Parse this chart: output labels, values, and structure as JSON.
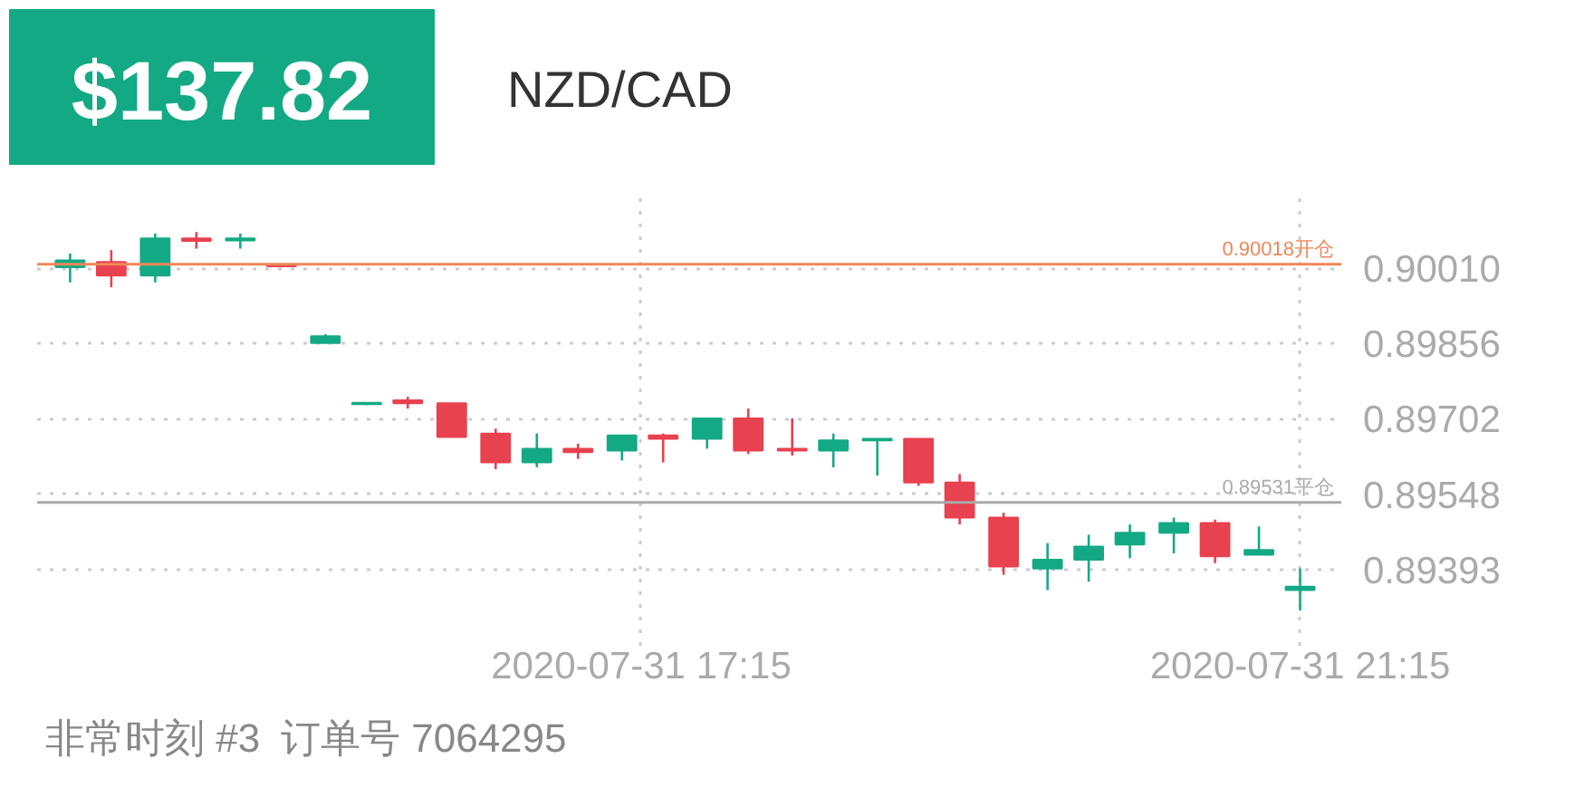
{
  "chart_data": {
    "type": "candlestick",
    "title": "$137.82",
    "subtitle": "NZD/CAD",
    "x": [
      "2020-07-31T13:47",
      "2020-07-31T14:02",
      "2020-07-31T14:18",
      "2020-07-31T14:33",
      "2020-07-31T14:49",
      "2020-07-31T15:04",
      "2020-07-31T15:20",
      "2020-07-31T15:35",
      "2020-07-31T15:50",
      "2020-07-31T16:06",
      "2020-07-31T16:22",
      "2020-07-31T16:37",
      "2020-07-31T16:52",
      "2020-07-31T17:08",
      "2020-07-31T17:23",
      "2020-07-31T17:39",
      "2020-07-31T17:54",
      "2020-07-31T18:10",
      "2020-07-31T18:25",
      "2020-07-31T18:41",
      "2020-07-31T18:56",
      "2020-07-31T19:11",
      "2020-07-31T19:27",
      "2020-07-31T19:43",
      "2020-07-31T19:58",
      "2020-07-31T20:13",
      "2020-07-31T20:29",
      "2020-07-31T20:44",
      "2020-07-31T21:00",
      "2020-07-31T21:15"
    ],
    "ohlc": [
      [
        0.90012,
        0.9004,
        0.89981,
        0.90026
      ],
      [
        0.90023,
        0.90047,
        0.89971,
        0.89995
      ],
      [
        0.89995,
        0.90081,
        0.89981,
        0.90071
      ],
      [
        0.90071,
        0.90084,
        0.9005,
        0.90066
      ],
      [
        0.90067,
        0.90081,
        0.9005,
        0.90071
      ],
      [
        0.90016,
        0.90016,
        0.90012,
        0.90014
      ],
      [
        0.89857,
        0.89875,
        0.89857,
        0.89871
      ],
      [
        0.89732,
        0.89735,
        0.8973,
        0.89735
      ],
      [
        0.8974,
        0.89747,
        0.89723,
        0.89734
      ],
      [
        0.89734,
        0.89734,
        0.89665,
        0.89665
      ],
      [
        0.89672,
        0.89682,
        0.89599,
        0.89613
      ],
      [
        0.89613,
        0.89672,
        0.89603,
        0.89641
      ],
      [
        0.89641,
        0.89651,
        0.8962,
        0.89634
      ],
      [
        0.89637,
        0.89668,
        0.89617,
        0.89668
      ],
      [
        0.89668,
        0.89672,
        0.89613,
        0.89661
      ],
      [
        0.89661,
        0.89703,
        0.89641,
        0.89703
      ],
      [
        0.89703,
        0.89723,
        0.8963,
        0.89637
      ],
      [
        0.89641,
        0.89703,
        0.89627,
        0.89637
      ],
      [
        0.89637,
        0.89672,
        0.89603,
        0.89658
      ],
      [
        0.89658,
        0.89661,
        0.89586,
        0.89661
      ],
      [
        0.89661,
        0.89661,
        0.89565,
        0.89572
      ],
      [
        0.89572,
        0.89589,
        0.89486,
        0.895
      ],
      [
        0.895,
        0.8951,
        0.89383,
        0.894
      ],
      [
        0.89396,
        0.89448,
        0.89352,
        0.89414
      ],
      [
        0.89414,
        0.89465,
        0.89369,
        0.89441
      ],
      [
        0.89445,
        0.89486,
        0.89417,
        0.89469
      ],
      [
        0.89469,
        0.895,
        0.89427,
        0.89489
      ],
      [
        0.89489,
        0.89496,
        0.89407,
        0.89421
      ],
      [
        0.89424,
        0.89482,
        0.89424,
        0.89434
      ],
      [
        0.89352,
        0.89396,
        0.8931,
        0.89359
      ]
    ],
    "colors": [
      "#14a985",
      "#e8414f",
      "#14a985",
      "#e8414f",
      "#14a985",
      "#e8414f",
      "#14a985",
      "#14a985",
      "#e8414f",
      "#e8414f",
      "#e8414f",
      "#14a985",
      "#e8414f",
      "#14a985",
      "#e8414f",
      "#14a985",
      "#e8414f",
      "#e8414f",
      "#14a985",
      "#14a985",
      "#e8414f",
      "#e8414f",
      "#e8414f",
      "#14a985",
      "#14a985",
      "#14a985",
      "#14a985",
      "#e8414f",
      "#14a985",
      "#14a985"
    ],
    "xlim": [
      "2020-07-31T13:35",
      "2020-07-31T21:30"
    ],
    "xticks": [
      {
        "value": "2020-07-31T17:15",
        "label": "2020-07-31 17:15"
      },
      {
        "value": "2020-07-31T21:15",
        "label": "2020-07-31 21:15"
      }
    ],
    "ylim": [
      0.89238,
      0.90164
    ],
    "yticks": [
      0.89393,
      0.89548,
      0.89702,
      0.89856,
      {
        "value": 0.9001,
        "label": "0.90010"
      }
    ],
    "grid": true,
    "ref_lines": [
      {
        "axis": "y",
        "value": 0.90018,
        "label": "0.90018开仓",
        "color": "#f0875a"
      },
      {
        "axis": "y",
        "value": 0.89531,
        "label": "0.89531平仓",
        "color": "#aaaaaa"
      }
    ],
    "annotations": [
      "非常时刻 #3",
      "订单号 7064295"
    ]
  }
}
